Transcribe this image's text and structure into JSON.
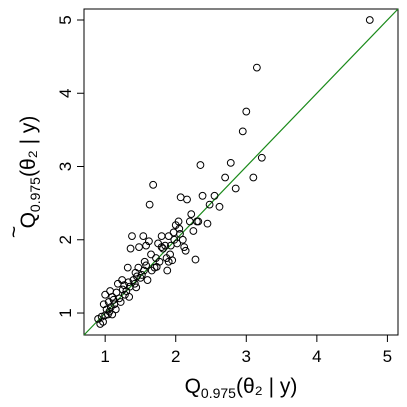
{
  "chart_data": {
    "type": "scatter",
    "xlabel": {
      "main": "Q",
      "sub": "0.975",
      "rest": "(θ₂ | y)"
    },
    "ylabel": {
      "tilde": "~",
      "main": "Q",
      "sub": "0.975",
      "rest": "(θ₂ | y)"
    },
    "xlim": [
      0.7,
      5.15
    ],
    "ylim": [
      0.7,
      5.15
    ],
    "x_ticks": [
      1,
      2,
      3,
      4,
      5
    ],
    "y_ticks": [
      1,
      2,
      3,
      4,
      5
    ],
    "reference_line": {
      "type": "identity",
      "slope": 1,
      "intercept": 0,
      "color": "#1a8a1a"
    },
    "marker": {
      "shape": "open-circle",
      "color": "#000000"
    },
    "grid": false,
    "points": [
      [
        0.93,
        0.85
      ],
      [
        0.95,
        0.95
      ],
      [
        0.97,
        0.88
      ],
      [
        0.98,
        1.12
      ],
      [
        1.0,
        0.97
      ],
      [
        1.02,
        1.05
      ],
      [
        1.04,
        0.98
      ],
      [
        1.05,
        1.15
      ],
      [
        1.06,
        1.02
      ],
      [
        1.08,
        1.08
      ],
      [
        1.1,
        1.22
      ],
      [
        1.12,
        1.18
      ],
      [
        1.13,
        1.12
      ],
      [
        1.15,
        1.05
      ],
      [
        1.16,
        1.28
      ],
      [
        1.18,
        1.4
      ],
      [
        1.2,
        1.2
      ],
      [
        1.22,
        1.15
      ],
      [
        1.25,
        1.32
      ],
      [
        1.27,
        1.38
      ],
      [
        1.28,
        1.25
      ],
      [
        1.3,
        1.3
      ],
      [
        1.32,
        1.62
      ],
      [
        1.33,
        1.42
      ],
      [
        1.35,
        1.36
      ],
      [
        1.36,
        1.88
      ],
      [
        1.38,
        2.05
      ],
      [
        1.4,
        1.45
      ],
      [
        1.42,
        1.4
      ],
      [
        1.43,
        1.55
      ],
      [
        1.45,
        1.5
      ],
      [
        1.47,
        1.62
      ],
      [
        1.48,
        1.9
      ],
      [
        1.5,
        1.48
      ],
      [
        1.52,
        1.52
      ],
      [
        1.54,
        2.05
      ],
      [
        1.55,
        1.58
      ],
      [
        1.56,
        1.7
      ],
      [
        1.58,
        1.65
      ],
      [
        1.6,
        1.45
      ],
      [
        1.62,
        1.98
      ],
      [
        1.63,
        2.48
      ],
      [
        1.65,
        1.8
      ],
      [
        1.68,
        2.75
      ],
      [
        1.7,
        1.62
      ],
      [
        1.72,
        1.75
      ],
      [
        1.75,
        1.95
      ],
      [
        1.77,
        1.7
      ],
      [
        1.8,
        1.9
      ],
      [
        1.82,
        1.88
      ],
      [
        1.85,
        1.92
      ],
      [
        1.87,
        1.75
      ],
      [
        1.88,
        1.58
      ],
      [
        1.9,
        2.05
      ],
      [
        1.92,
        1.8
      ],
      [
        1.95,
        1.72
      ],
      [
        1.97,
        2.1
      ],
      [
        1.98,
        2.0
      ],
      [
        2.0,
        2.2
      ],
      [
        2.02,
        1.95
      ],
      [
        2.04,
        2.25
      ],
      [
        2.05,
        2.15
      ],
      [
        2.07,
        2.58
      ],
      [
        2.1,
        2.0
      ],
      [
        2.12,
        1.9
      ],
      [
        2.14,
        1.85
      ],
      [
        2.16,
        2.55
      ],
      [
        2.2,
        2.25
      ],
      [
        2.25,
        2.12
      ],
      [
        2.28,
        1.73
      ],
      [
        2.3,
        2.25
      ],
      [
        2.32,
        2.25
      ],
      [
        2.35,
        3.02
      ],
      [
        2.38,
        2.6
      ],
      [
        2.45,
        2.22
      ],
      [
        2.48,
        2.48
      ],
      [
        2.55,
        2.6
      ],
      [
        2.62,
        2.45
      ],
      [
        2.7,
        2.85
      ],
      [
        2.78,
        3.05
      ],
      [
        2.85,
        2.7
      ],
      [
        2.95,
        3.48
      ],
      [
        3.0,
        3.75
      ],
      [
        3.1,
        2.85
      ],
      [
        3.15,
        4.35
      ],
      [
        3.22,
        3.12
      ],
      [
        4.75,
        5.0
      ],
      [
        1.0,
        1.25
      ],
      [
        1.1,
        0.98
      ],
      [
        1.24,
        1.45
      ],
      [
        1.44,
        1.35
      ],
      [
        1.58,
        1.92
      ],
      [
        1.66,
        1.58
      ],
      [
        1.8,
        2.05
      ],
      [
        1.93,
        1.92
      ],
      [
        2.06,
        2.08
      ],
      [
        2.22,
        2.35
      ],
      [
        0.9,
        0.92
      ],
      [
        1.07,
        1.3
      ],
      [
        1.34,
        1.22
      ],
      [
        1.73,
        1.63
      ],
      [
        1.9,
        1.7
      ]
    ]
  }
}
